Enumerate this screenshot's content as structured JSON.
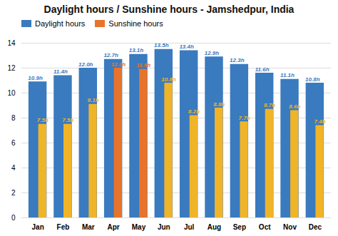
{
  "chart_data": {
    "type": "bar",
    "title": "Daylight hours / Sunshine hours - Jamshedpur, India",
    "categories": [
      "Jan",
      "Feb",
      "Mar",
      "Apr",
      "May",
      "Jun",
      "Jul",
      "Aug",
      "Sep",
      "Oct",
      "Nov",
      "Dec"
    ],
    "series": [
      {
        "name": "Daylight hours",
        "color": "#3a7abf",
        "values": [
          10.9,
          11.4,
          12.0,
          12.7,
          13.1,
          13.5,
          13.4,
          12.9,
          12.3,
          11.6,
          11.1,
          10.8
        ],
        "value_labels": [
          "10.9h",
          "11.4h",
          "12.0h",
          "12.7h",
          "13.1h",
          "13.5h",
          "13.4h",
          "12.9h",
          "12.3h",
          "11.6h",
          "11.1h",
          "10.8h"
        ]
      },
      {
        "name": "Sunshine hours",
        "color": "#e8732a",
        "colors": [
          "#f0b429",
          "#f0b429",
          "#f0b429",
          "#e8732a",
          "#e8732a",
          "#f0b429",
          "#f0b429",
          "#f0b429",
          "#f0b429",
          "#f0b429",
          "#f0b429",
          "#f0b429"
        ],
        "values": [
          7.5,
          7.5,
          9.1,
          12.0,
          11.9,
          10.8,
          8.2,
          8.8,
          7.7,
          8.7,
          8.6,
          7.4
        ],
        "value_labels": [
          "7.5h",
          "7.5h",
          "9.1h",
          "12.0h",
          "11.9h",
          "10.8h",
          "8.2h",
          "8.8h",
          "7.7h",
          "8.7h",
          "8.6h",
          "7.4h"
        ]
      }
    ],
    "ylim": [
      0,
      14
    ],
    "yticks": [
      0,
      2,
      4,
      6,
      8,
      10,
      12,
      14
    ],
    "grid": true,
    "legend": "upper left",
    "data_labels": true
  }
}
